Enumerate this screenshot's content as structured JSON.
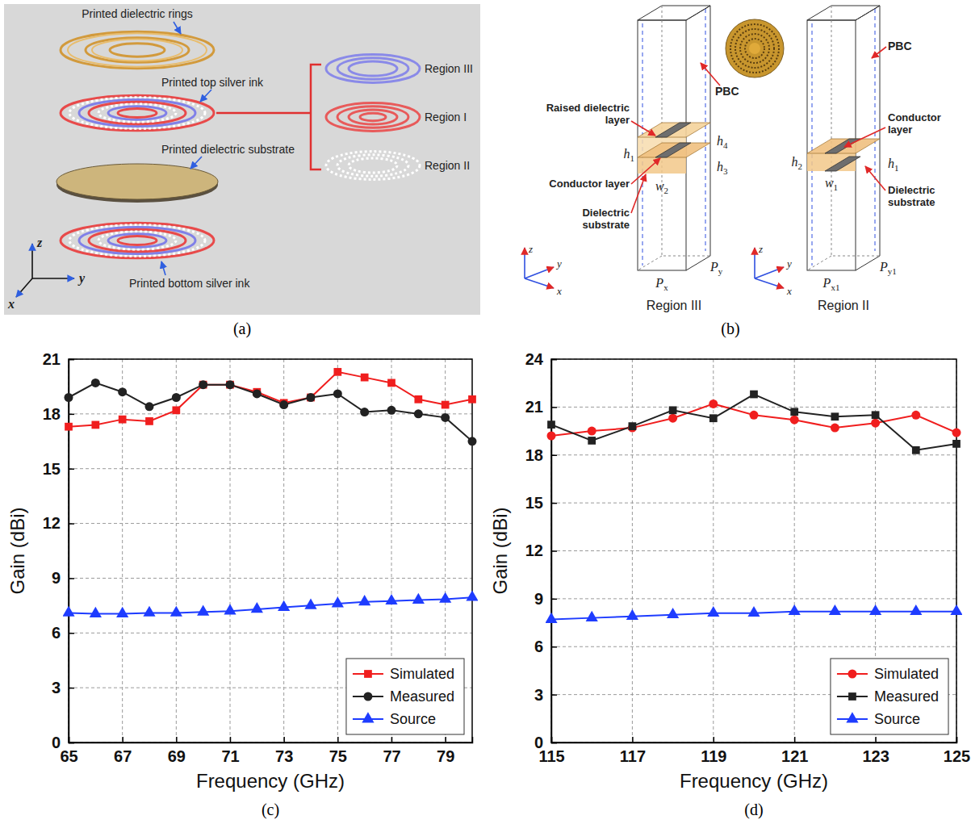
{
  "panels": {
    "a": {
      "label": "(a)",
      "callouts": [
        "Printed dielectric rings",
        "Printed top silver ink",
        "Printed dielectric substrate",
        "Printed bottom silver ink"
      ],
      "regions": [
        "Region III",
        "Region I",
        "Region II"
      ],
      "axes": [
        "z",
        "x",
        "y"
      ]
    },
    "b": {
      "label": "(b)",
      "cells": [
        {
          "title": "Region III",
          "labels": [
            "PBC",
            "Raised dielectric layer",
            "Conductor layer",
            "Dielectric substrate"
          ],
          "dims": [
            "h4",
            "h1",
            "h3",
            "w2",
            "Px",
            "Py"
          ],
          "axes": [
            "z",
            "y",
            "x"
          ]
        },
        {
          "title": "Region II",
          "labels": [
            "PBC",
            "Dielectric substrate",
            "Conductor layer"
          ],
          "dims": [
            "h2",
            "h1",
            "w1",
            "Px1",
            "Py1"
          ],
          "axes": [
            "z",
            "y",
            "x"
          ]
        }
      ]
    }
  },
  "chart_data": [
    {
      "type": "line",
      "title": "(c)",
      "x_label": "Frequency (GHz)",
      "y_label": "Gain (dBi)",
      "x": [
        65,
        66,
        67,
        68,
        69,
        70,
        71,
        72,
        73,
        74,
        75,
        76,
        77,
        78,
        79,
        80
      ],
      "xlim": [
        65,
        80
      ],
      "xticks": [
        65,
        67,
        69,
        71,
        73,
        75,
        77,
        79
      ],
      "ylim": [
        0,
        21
      ],
      "yticks": [
        0,
        3,
        6,
        9,
        12,
        15,
        18,
        21
      ],
      "grid": true,
      "legend": "lower right",
      "series": [
        {
          "name": "Simulated",
          "color": "#f01e1e",
          "marker": "square",
          "values": [
            17.3,
            17.4,
            17.7,
            17.6,
            18.2,
            19.6,
            19.6,
            19.2,
            18.6,
            18.9,
            20.3,
            20.0,
            19.7,
            18.8,
            18.5,
            18.8
          ]
        },
        {
          "name": "Measured",
          "color": "#222222",
          "marker": "circle",
          "values": [
            18.9,
            19.7,
            19.2,
            18.4,
            18.9,
            19.6,
            19.6,
            19.1,
            18.5,
            18.9,
            19.1,
            18.1,
            18.2,
            18.0,
            17.8,
            16.5
          ]
        },
        {
          "name": "Source",
          "color": "#1e3cff",
          "marker": "triangle",
          "values": [
            7.1,
            7.05,
            7.05,
            7.1,
            7.1,
            7.15,
            7.2,
            7.3,
            7.4,
            7.5,
            7.6,
            7.7,
            7.75,
            7.8,
            7.85,
            7.95
          ]
        }
      ]
    },
    {
      "type": "line",
      "title": "(d)",
      "x_label": "Frequency (GHz)",
      "y_label": "Gain (dBi)",
      "x": [
        115,
        116,
        117,
        118,
        119,
        120,
        121,
        122,
        123,
        124,
        125
      ],
      "xlim": [
        115,
        125
      ],
      "xticks": [
        115,
        117,
        119,
        121,
        123,
        125
      ],
      "ylim": [
        0,
        24
      ],
      "yticks": [
        0,
        3,
        6,
        9,
        12,
        15,
        18,
        21,
        24
      ],
      "grid": true,
      "legend": "lower right",
      "series": [
        {
          "name": "Simulated",
          "color": "#f01e1e",
          "marker": "circle",
          "values": [
            19.2,
            19.5,
            19.7,
            20.3,
            21.2,
            20.5,
            20.2,
            19.7,
            20.0,
            20.5,
            19.4
          ]
        },
        {
          "name": "Measured",
          "color": "#222222",
          "marker": "square",
          "values": [
            19.9,
            18.9,
            19.8,
            20.8,
            20.3,
            21.8,
            20.7,
            20.4,
            20.5,
            18.3,
            18.7
          ]
        },
        {
          "name": "Source",
          "color": "#1e3cff",
          "marker": "triangle",
          "values": [
            7.7,
            7.8,
            7.9,
            8.0,
            8.1,
            8.1,
            8.2,
            8.2,
            8.2,
            8.2,
            8.2
          ]
        }
      ]
    }
  ]
}
